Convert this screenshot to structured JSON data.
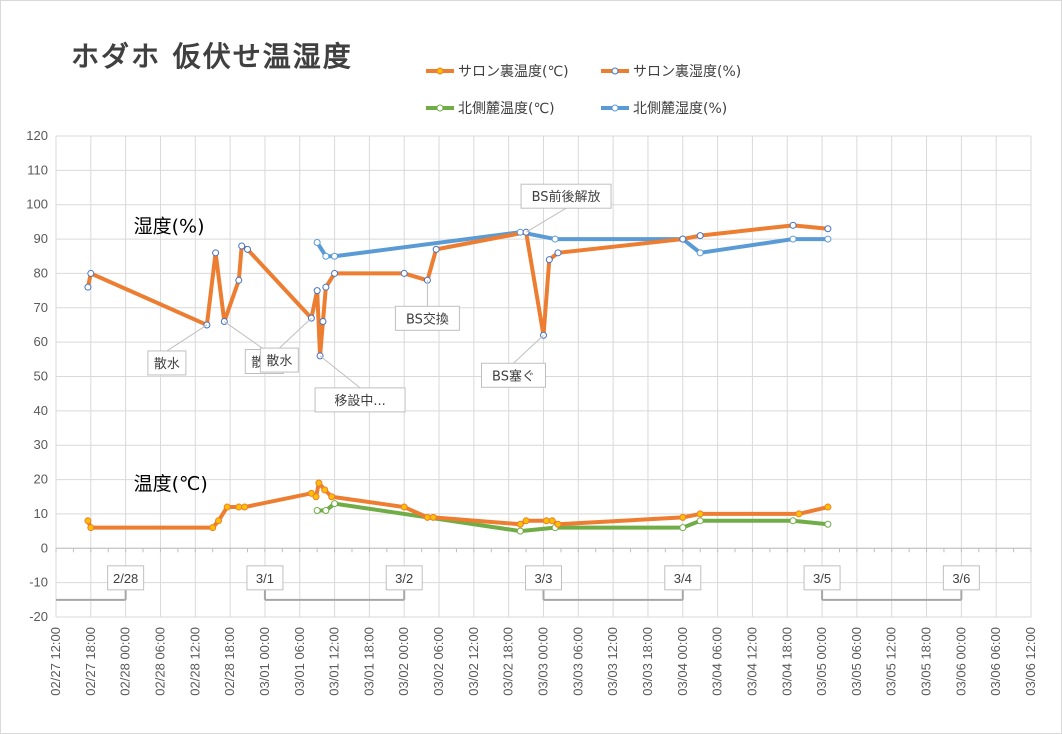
{
  "chart_data": {
    "type": "line",
    "title": "ホダホ 仮伏せ温湿度",
    "xlabel": "",
    "ylabel": "",
    "ylim": [
      -20,
      120
    ],
    "y_ticks": [
      120,
      110,
      100,
      90,
      80,
      70,
      60,
      50,
      40,
      30,
      20,
      10,
      0,
      -10,
      -20
    ],
    "x_ticks": [
      "02/27 12:00",
      "02/27 18:00",
      "02/28 00:00",
      "02/28 06:00",
      "02/28 12:00",
      "02/28 18:00",
      "03/01 00:00",
      "03/01 06:00",
      "03/01 12:00",
      "03/01 18:00",
      "03/02 00:00",
      "03/02 06:00",
      "03/02 12:00",
      "03/02 18:00",
      "03/03 00:00",
      "03/03 06:00",
      "03/03 12:00",
      "03/03 18:00",
      "03/04 00:00",
      "03/04 06:00",
      "03/04 12:00",
      "03/04 18:00",
      "03/05 00:00",
      "03/05 06:00",
      "03/05 12:00",
      "03/05 18:00",
      "03/06 00:00",
      "03/06 06:00",
      "03/06 12:00"
    ],
    "grid": true,
    "legend_position": "top-right",
    "series": [
      {
        "name": "サロン裏温度(℃)",
        "color": "#ED7D31",
        "marker": "#FFC000",
        "points": [
          [
            5.5,
            8
          ],
          [
            6.0,
            6
          ],
          [
            27.0,
            6
          ],
          [
            28.0,
            8
          ],
          [
            29.5,
            12
          ],
          [
            31.5,
            12
          ],
          [
            32.5,
            12
          ],
          [
            44.0,
            16
          ],
          [
            44.8,
            15
          ],
          [
            45.3,
            19
          ],
          [
            46.3,
            17
          ],
          [
            47.5,
            15
          ],
          [
            60.0,
            12
          ],
          [
            64.0,
            9
          ],
          [
            65.0,
            9
          ],
          [
            80.0,
            7
          ],
          [
            81.0,
            8
          ],
          [
            84.5,
            8
          ],
          [
            85.5,
            8
          ],
          [
            86.5,
            7
          ],
          [
            108.0,
            9
          ],
          [
            111.0,
            10
          ],
          [
            128.0,
            10
          ],
          [
            133.0,
            12
          ]
        ]
      },
      {
        "name": "サロン裏湿度(%)",
        "color": "#ED7D31",
        "marker": "#FFFFFF",
        "points": [
          [
            5.5,
            76
          ],
          [
            6.0,
            80
          ],
          [
            26.0,
            65
          ],
          [
            27.5,
            86
          ],
          [
            29.0,
            66
          ],
          [
            31.5,
            78
          ],
          [
            32.0,
            88
          ],
          [
            33.0,
            87
          ],
          [
            44.0,
            67
          ],
          [
            45.0,
            75
          ],
          [
            45.5,
            56
          ],
          [
            46.0,
            66
          ],
          [
            46.5,
            76
          ],
          [
            48.0,
            80
          ],
          [
            60.0,
            80
          ],
          [
            64.0,
            78
          ],
          [
            65.5,
            87
          ],
          [
            81.0,
            92
          ],
          [
            84.0,
            62
          ],
          [
            85.0,
            84
          ],
          [
            86.5,
            86
          ],
          [
            108.0,
            90
          ],
          [
            111.0,
            91
          ],
          [
            127.0,
            94
          ],
          [
            133.0,
            93
          ]
        ]
      },
      {
        "name": "北側麓温度(℃)",
        "color": "#70AD47",
        "marker": "#FFFFFF",
        "points": [
          [
            45.0,
            11
          ],
          [
            46.5,
            11
          ],
          [
            48.0,
            13
          ],
          [
            80.0,
            5
          ],
          [
            86.0,
            6
          ],
          [
            108.0,
            6
          ],
          [
            111.0,
            8
          ],
          [
            127.0,
            8
          ],
          [
            133.0,
            7
          ]
        ]
      },
      {
        "name": "北側麓湿度(%)",
        "color": "#5B9BD5",
        "marker": "#FFFFFF",
        "points": [
          [
            45.0,
            89
          ],
          [
            46.5,
            85
          ],
          [
            48.0,
            85
          ],
          [
            80.0,
            92
          ],
          [
            86.0,
            90
          ],
          [
            108.0,
            90
          ],
          [
            111.0,
            86
          ],
          [
            127.0,
            90
          ],
          [
            133.0,
            90
          ]
        ]
      }
    ],
    "day_markers": {
      "y": -15,
      "labels": [
        "2/28",
        "3/1",
        "3/2",
        "3/3",
        "3/4",
        "3/5",
        "3/6"
      ],
      "boundaries": [
        12,
        36,
        60,
        84,
        108,
        132,
        156
      ],
      "line_segments": [
        [
          0,
          12
        ],
        [
          36,
          60
        ],
        [
          84,
          108
        ],
        [
          132,
          156
        ]
      ]
    },
    "annotations": [
      {
        "text": "散水",
        "x": 26.0,
        "y": 65
      },
      {
        "text": "散水",
        "x": 29.0,
        "y": 66
      },
      {
        "text": "散水",
        "x": 44.0,
        "y": 67
      },
      {
        "text": "移設中...",
        "x": 45.5,
        "y": 56
      },
      {
        "text": "BS交換",
        "x": 64.0,
        "y": 78
      },
      {
        "text": "BS前後解放",
        "x": 81.0,
        "y": 92
      },
      {
        "text": "BS塞ぐ",
        "x": 84.0,
        "y": 62
      }
    ],
    "section_labels": [
      {
        "text": "湿度(%)",
        "x": 12.0,
        "y": 94
      },
      {
        "text": "温度(℃)",
        "x": 12.0,
        "y": 19
      }
    ]
  }
}
